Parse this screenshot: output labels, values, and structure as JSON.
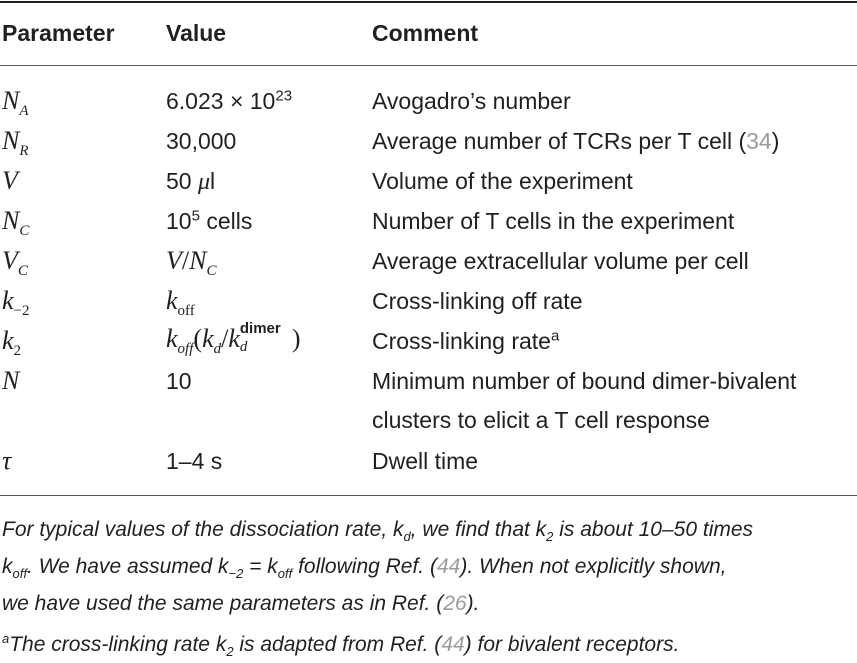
{
  "table": {
    "headers": {
      "parameter": "Parameter",
      "value": "Value",
      "comment": "Comment"
    },
    "rows": [
      {
        "param": {
          "base": "N",
          "sub": "A"
        },
        "value": {
          "text": "6.023 × 10",
          "sup": "23"
        },
        "comment": "Avogadro’s number"
      },
      {
        "param": {
          "base": "N",
          "sub": "R"
        },
        "value": {
          "text": "30,000"
        },
        "comment": "Average number of TCRs per T cell (",
        "comment_ref": "34",
        "comment_end": ")"
      },
      {
        "param": {
          "base": "V",
          "sub": ""
        },
        "value": {
          "num": "50",
          "unit_math": "μ",
          "unit": "l"
        },
        "comment": "Volume of the experiment"
      },
      {
        "param": {
          "base": "N",
          "sub": "C"
        },
        "value": {
          "text": "10",
          "sup": "5",
          "after": " cells"
        },
        "comment": "Number of T cells in the experiment"
      },
      {
        "param": {
          "base": "V",
          "sub": "C"
        },
        "value": {
          "a": "V",
          "slash": "/",
          "b": "N",
          "bsub": "C"
        },
        "comment": "Average extracellular volume per cell"
      },
      {
        "param": {
          "base": "k",
          "sub": "−2"
        },
        "value": {
          "base": "k",
          "sub": "off"
        },
        "comment": "Cross-linking off rate"
      },
      {
        "param": {
          "base": "k",
          "sub": "2"
        },
        "value": {
          "k": "k",
          "ksub": "off",
          "open": "(",
          "kd": "k",
          "kdsub": "d",
          "slash": "/",
          "kd2": "k",
          "kd2sub": "d",
          "kd2sup": "dimer",
          "close": ")"
        },
        "comment": "Cross-linking rate",
        "comment_sup": "a"
      },
      {
        "param": {
          "base": "N",
          "sub": ""
        },
        "value": {
          "text": "10"
        },
        "comment": "Minimum number of bound dimer-bivalent",
        "comment_line2": "clusters to elicit a T cell response"
      },
      {
        "param": {
          "base": "τ",
          "sub": ""
        },
        "value": {
          "text": "1–4 s"
        },
        "comment": "Dwell time"
      }
    ]
  },
  "footnotes": {
    "line1": {
      "a": "For typical values of the dissociation rate, ",
      "kd": "k",
      "kd_sub": "d",
      "b": ", we find that ",
      "k2": "k",
      "k2_sub": "2",
      "c": " is about 10–50 times"
    },
    "line2": {
      "koff": "k",
      "koff_sub": "off",
      "a": ". We have assumed ",
      "km2": "k",
      "km2_sub": "−2",
      "eq": " = ",
      "koff2": "k",
      "koff2_sub": "off",
      "b": " following Ref. (",
      "ref": "44",
      "c": "). When not explicitly shown,"
    },
    "line3": {
      "a": "we have used the same parameters as in Ref. (",
      "ref": "26",
      "b": ")."
    },
    "line4": {
      "marker": "a",
      "a": "The cross-linking rate ",
      "k2": "k",
      "k2_sub": "2",
      "b": " is adapted from Ref. (",
      "ref": "44",
      "c": ") for bivalent receptors."
    }
  }
}
